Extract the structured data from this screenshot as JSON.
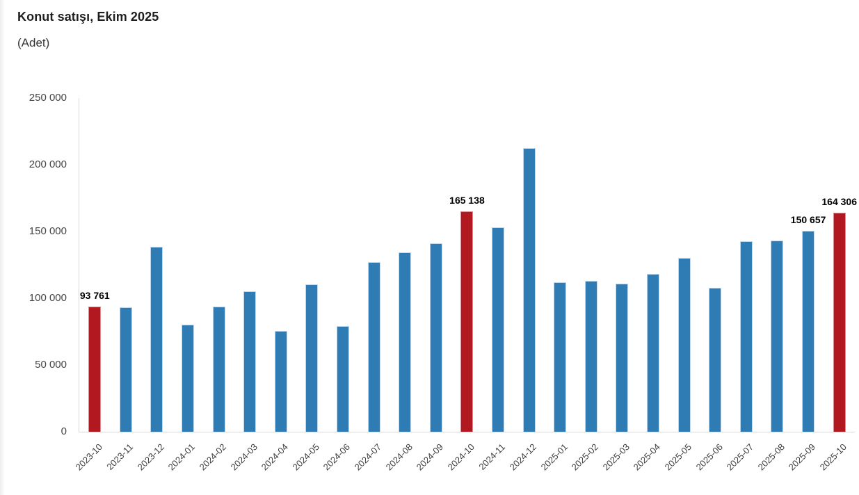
{
  "chart_data": {
    "type": "bar",
    "title": "Konut satışı, Ekim 2025",
    "subtitle": "(Adet)",
    "unit": "Adet",
    "categories": [
      "2023-10",
      "2023-11",
      "2023-12",
      "2024-01",
      "2024-02",
      "2024-03",
      "2024-04",
      "2024-05",
      "2024-06",
      "2024-07",
      "2024-08",
      "2024-09",
      "2024-10",
      "2024-11",
      "2024-12",
      "2025-01",
      "2025-02",
      "2025-03",
      "2025-04",
      "2025-05",
      "2025-06",
      "2025-07",
      "2025-08",
      "2025-09",
      "2025-10"
    ],
    "values": [
      93761,
      93178,
      138577,
      80308,
      93902,
      105476,
      75569,
      110588,
      79313,
      127088,
      134155,
      140919,
      165138,
      153014,
      212637,
      112173,
      112818,
      110795,
      118359,
      130025,
      107723,
      142858,
      143319,
      150657,
      164306
    ],
    "highlight_indices": [
      0,
      12,
      24
    ],
    "data_labels": [
      {
        "index": 0,
        "text": "93 761"
      },
      {
        "index": 12,
        "text": "165 138"
      },
      {
        "index": 23,
        "text": "150 657"
      },
      {
        "index": 24,
        "text": "164 306"
      }
    ],
    "ylim": [
      0,
      250000
    ],
    "ytick_step": 50000,
    "ytick_labels": [
      "0",
      "50 000",
      "100 000",
      "150 000",
      "200 000",
      "250 000"
    ],
    "grid": false,
    "legend": false,
    "colors": {
      "bar": "#2f7cb5",
      "bar_border": "#bdd7ee",
      "highlight": "#b1181f",
      "highlight_border": "#d98c90",
      "axis_line": "#d9d9d9",
      "tick_text": "#444444",
      "xtick_text": "#3d3d3d",
      "data_label_text": "#000000",
      "title_text": "#1f1f1f"
    }
  }
}
